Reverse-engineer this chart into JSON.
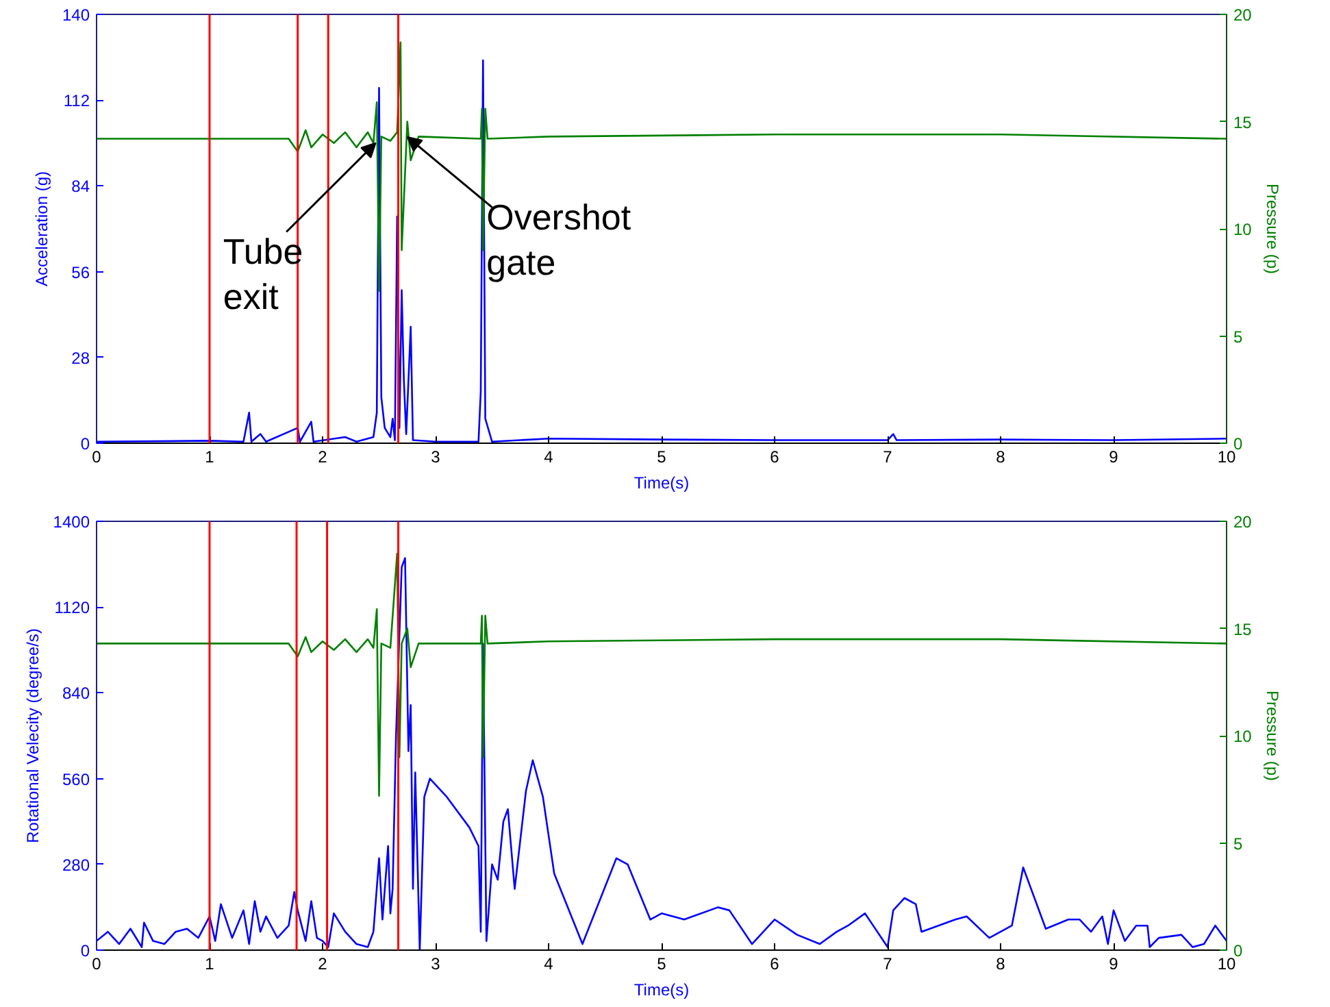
{
  "chart_data": [
    {
      "type": "line",
      "xlabel": "Time(s)",
      "ylabel": "Acceleration (g)",
      "y2label": "Pressure (p)",
      "xlim": [
        0,
        10
      ],
      "xticks": [
        0,
        1,
        2,
        3,
        4,
        5,
        6,
        7,
        8,
        9,
        10
      ],
      "ylim": [
        0,
        140
      ],
      "yticks": [
        0,
        28,
        56,
        84,
        112,
        140
      ],
      "y2lim": [
        0,
        20
      ],
      "y2ticks": [
        0,
        5,
        10,
        15,
        20
      ],
      "grid": false,
      "series": [
        {
          "color": "#0000ff",
          "x": [
            0,
            1.0,
            1.3,
            1.35,
            1.37,
            1.45,
            1.5,
            1.78,
            1.8,
            1.9,
            1.92,
            2.2,
            2.3,
            2.45,
            2.48,
            2.5,
            2.52,
            2.55,
            2.6,
            2.62,
            2.64,
            2.66,
            2.68,
            2.7,
            2.72,
            2.74,
            2.78,
            2.8,
            3.0,
            3.38,
            3.4,
            3.42,
            3.44,
            3.5,
            4,
            5,
            6,
            7,
            7.05,
            7.08,
            8,
            9,
            10
          ],
          "values": [
            0.5,
            0.8,
            0.5,
            10,
            0.5,
            3,
            0.5,
            5,
            0.5,
            7,
            0.5,
            2,
            0.5,
            2,
            10,
            116,
            15,
            5,
            2,
            8,
            1,
            74,
            5,
            50,
            20,
            3,
            38,
            1,
            0.5,
            0.5,
            17,
            125,
            8,
            0.5,
            1.5,
            1.2,
            1,
            1,
            3,
            1,
            1.2,
            1,
            1.5
          ]
        },
        {
          "color": "#008000",
          "axis": "y2",
          "x": [
            0,
            1,
            1.7,
            1.78,
            1.85,
            1.9,
            2.0,
            2.1,
            2.2,
            2.3,
            2.4,
            2.45,
            2.48,
            2.5,
            2.52,
            2.6,
            2.66,
            2.69,
            2.7,
            2.75,
            2.78,
            2.85,
            3.4,
            3.41,
            3.42,
            3.44,
            3.46,
            4,
            6,
            8,
            10
          ],
          "values": [
            14.2,
            14.2,
            14.2,
            13.6,
            14.6,
            13.8,
            14.4,
            14.0,
            14.5,
            13.8,
            14.5,
            14.0,
            15.9,
            7.1,
            14.3,
            14.1,
            14.5,
            18.7,
            9,
            15,
            13.2,
            14.3,
            14.2,
            15.6,
            9.0,
            15.6,
            14.2,
            14.3,
            14.4,
            14.4,
            14.2
          ]
        }
      ],
      "ref_lines": [
        {
          "axis": "x",
          "value": 1.0,
          "color": "#ff0000"
        },
        {
          "axis": "x",
          "value": 1.78,
          "color": "#ff0000"
        },
        {
          "axis": "x",
          "value": 2.05,
          "color": "#ff0000"
        },
        {
          "axis": "x",
          "value": 2.67,
          "color": "#ff0000"
        }
      ],
      "annotations": [
        {
          "text": "Tube\nexit",
          "x": 2.47,
          "y": 98
        },
        {
          "text": "Overshot\ngate",
          "x": 2.75,
          "y": 100
        }
      ]
    },
    {
      "type": "line",
      "xlabel": "Time(s)",
      "ylabel": "Rotational Velecity (degree/s)",
      "y2label": "Pressure (p)",
      "xlim": [
        0,
        10
      ],
      "xticks": [
        0,
        1,
        2,
        3,
        4,
        5,
        6,
        7,
        8,
        9,
        10
      ],
      "ylim": [
        0,
        1400
      ],
      "yticks": [
        0,
        280,
        560,
        840,
        1120,
        1400
      ],
      "y2lim": [
        0,
        20
      ],
      "y2ticks": [
        0,
        5,
        10,
        15,
        20
      ],
      "grid": false,
      "series": [
        {
          "color": "#0000ff",
          "x": [
            0,
            0.1,
            0.2,
            0.3,
            0.4,
            0.42,
            0.5,
            0.6,
            0.7,
            0.8,
            0.9,
            1.0,
            1.05,
            1.1,
            1.2,
            1.3,
            1.35,
            1.4,
            1.45,
            1.5,
            1.6,
            1.7,
            1.75,
            1.78,
            1.85,
            1.9,
            1.95,
            2.0,
            2.05,
            2.1,
            2.2,
            2.3,
            2.4,
            2.45,
            2.5,
            2.53,
            2.58,
            2.6,
            2.62,
            2.65,
            2.7,
            2.73,
            2.76,
            2.78,
            2.8,
            2.82,
            2.86,
            2.9,
            2.95,
            3.1,
            3.3,
            3.38,
            3.4,
            3.42,
            3.45,
            3.5,
            3.55,
            3.6,
            3.64,
            3.7,
            3.8,
            3.86,
            3.95,
            4.05,
            4.3,
            4.6,
            4.7,
            4.9,
            5,
            5.2,
            5.5,
            5.6,
            5.8,
            6,
            6.2,
            6.4,
            6.55,
            6.65,
            6.8,
            7.0,
            7.05,
            7.15,
            7.25,
            7.3,
            7.6,
            7.7,
            7.9,
            8.1,
            8.2,
            8.4,
            8.6,
            8.7,
            8.8,
            8.9,
            8.95,
            9.0,
            9.1,
            9.2,
            9.3,
            9.32,
            9.4,
            9.6,
            9.7,
            9.8,
            9.9,
            10
          ],
          "values": [
            30,
            60,
            20,
            70,
            10,
            90,
            30,
            20,
            60,
            70,
            40,
            110,
            30,
            150,
            40,
            130,
            20,
            160,
            60,
            110,
            40,
            80,
            190,
            130,
            30,
            160,
            40,
            30,
            10,
            120,
            60,
            20,
            10,
            60,
            300,
            100,
            340,
            120,
            200,
            700,
            1250,
            1280,
            650,
            800,
            200,
            580,
            0,
            500,
            560,
            500,
            400,
            340,
            60,
            1000,
            30,
            280,
            230,
            420,
            460,
            200,
            520,
            620,
            500,
            250,
            20,
            300,
            280,
            100,
            120,
            100,
            140,
            130,
            20,
            100,
            50,
            20,
            60,
            80,
            120,
            10,
            130,
            170,
            150,
            60,
            100,
            110,
            40,
            80,
            270,
            70,
            100,
            100,
            60,
            110,
            20,
            130,
            30,
            80,
            80,
            10,
            40,
            50,
            10,
            20,
            80,
            30
          ]
        },
        {
          "color": "#008000",
          "axis": "y2",
          "x": [
            0,
            1,
            1.7,
            1.78,
            1.85,
            1.9,
            2.0,
            2.1,
            2.2,
            2.3,
            2.4,
            2.45,
            2.48,
            2.5,
            2.52,
            2.6,
            2.66,
            2.68,
            2.7,
            2.75,
            2.78,
            2.85,
            3.4,
            3.41,
            3.42,
            3.44,
            3.46,
            4,
            6,
            8,
            10
          ],
          "values": [
            14.3,
            14.3,
            14.3,
            13.7,
            14.6,
            13.9,
            14.4,
            14.0,
            14.5,
            13.9,
            14.5,
            14.1,
            15.9,
            7.2,
            14.3,
            14.1,
            18.5,
            9,
            14.3,
            15,
            13.2,
            14.3,
            14.3,
            15.6,
            9.0,
            15.6,
            14.3,
            14.4,
            14.5,
            14.5,
            14.3
          ]
        }
      ],
      "ref_lines": [
        {
          "axis": "x",
          "value": 1.0,
          "color": "#ff0000"
        },
        {
          "axis": "x",
          "value": 1.77,
          "color": "#ff0000"
        },
        {
          "axis": "x",
          "value": 2.04,
          "color": "#ff0000"
        },
        {
          "axis": "x",
          "value": 2.67,
          "color": "#ff0000"
        }
      ]
    }
  ]
}
